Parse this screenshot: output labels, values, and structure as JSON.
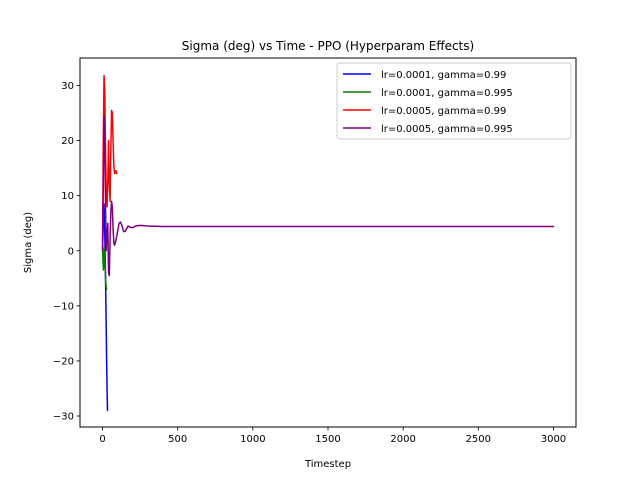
{
  "chart_data": {
    "type": "line",
    "title": "Sigma (deg) vs Time - PPO (Hyperparam Effects)",
    "xlabel": "Timestep",
    "ylabel": "Sigma (deg)",
    "xlim": [
      -150,
      3150
    ],
    "ylim": [
      -32,
      35
    ],
    "xticks": [
      0,
      500,
      1000,
      1500,
      2000,
      2500,
      3000
    ],
    "yticks": [
      -30,
      -20,
      -10,
      0,
      10,
      20,
      30
    ],
    "grid": false,
    "legend_position": "top-right",
    "series": [
      {
        "name": "lr=0.0001, gamma=0.99",
        "color": "#0000ff",
        "x": [
          0,
          3,
          6,
          9,
          12,
          15,
          18,
          21,
          24,
          27,
          30,
          33
        ],
        "y": [
          0.5,
          3.0,
          6.5,
          8.5,
          7.0,
          3.0,
          -2.0,
          -7.0,
          -13.0,
          -19.5,
          -25.0,
          -29.0
        ]
      },
      {
        "name": "lr=0.0001, gamma=0.995",
        "color": "#008000",
        "x": [
          0,
          3,
          6,
          9,
          12,
          15,
          18,
          21,
          24,
          27
        ],
        "y": [
          0.5,
          -2.0,
          -3.5,
          -2.5,
          0.5,
          -1.0,
          -3.5,
          -5.5,
          -6.5,
          -7.0
        ]
      },
      {
        "name": "lr=0.0005, gamma=0.99",
        "color": "#ff0000",
        "x": [
          0,
          5,
          10,
          15,
          20,
          25,
          30,
          35,
          40,
          45,
          50,
          55,
          60,
          65,
          70,
          75,
          80,
          85,
          90,
          95
        ],
        "y": [
          1.5,
          20.0,
          31.8,
          29.0,
          18.0,
          10.0,
          8.0,
          13.0,
          20.0,
          12.0,
          9.0,
          18.0,
          25.5,
          25.0,
          20.0,
          15.5,
          14.0,
          14.5,
          14.5,
          14.0
        ]
      },
      {
        "name": "lr=0.0005, gamma=0.995",
        "color": "#800080",
        "x": [
          0,
          5,
          10,
          15,
          20,
          25,
          30,
          35,
          40,
          45,
          50,
          55,
          60,
          65,
          70,
          75,
          80,
          90,
          100,
          110,
          120,
          130,
          140,
          150,
          160,
          170,
          180,
          200,
          220,
          250,
          300,
          400,
          500,
          1000,
          1500,
          2000,
          2500,
          3000
        ],
        "y": [
          0.0,
          12.0,
          24.5,
          20.0,
          8.0,
          0.0,
          3.0,
          5.0,
          -4.0,
          -4.5,
          2.0,
          7.0,
          9.0,
          8.0,
          4.0,
          1.5,
          1.0,
          2.0,
          3.5,
          5.0,
          5.2,
          4.5,
          3.5,
          3.5,
          4.0,
          4.5,
          4.3,
          4.2,
          4.5,
          4.6,
          4.5,
          4.4,
          4.4,
          4.4,
          4.4,
          4.4,
          4.4,
          4.4
        ]
      }
    ]
  }
}
